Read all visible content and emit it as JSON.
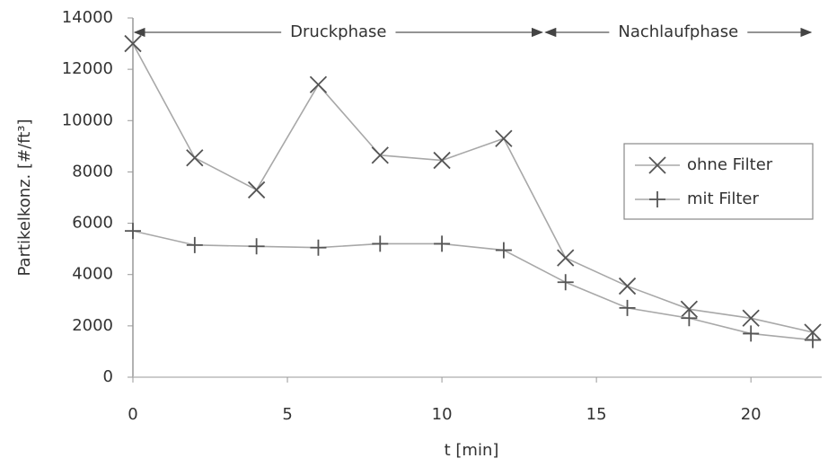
{
  "chart_data": {
    "type": "line",
    "x_label": "t [min]",
    "y_label": "Partikelkonz. [#/ft³]",
    "x": [
      0,
      2,
      4,
      6,
      8,
      10,
      12,
      14,
      16,
      18,
      20,
      22
    ],
    "series": [
      {
        "name": "ohne Filter",
        "color": "#a8a8a8",
        "marker": "x",
        "values": [
          13000,
          8550,
          7300,
          11400,
          8650,
          8450,
          9300,
          4650,
          3550,
          2650,
          2300,
          1750
        ]
      },
      {
        "name": "mit Filter",
        "color": "#a8a8a8",
        "marker": "+",
        "values": [
          5700,
          5150,
          5100,
          5050,
          5200,
          5200,
          4950,
          3700,
          2700,
          2300,
          1700,
          1450
        ]
      }
    ],
    "xlim": [
      0,
      22
    ],
    "xticks": [
      0,
      5,
      10,
      15,
      20
    ],
    "ylim": [
      0,
      14000
    ],
    "yticks": [
      0,
      2000,
      4000,
      6000,
      8000,
      10000,
      12000,
      14000
    ],
    "grid": false,
    "legend": "right",
    "phases": [
      {
        "label": "Druckphase",
        "start": 0,
        "end": 13.3
      },
      {
        "label": "Nachlaufphase",
        "start": 13.3,
        "end": 22
      }
    ]
  }
}
